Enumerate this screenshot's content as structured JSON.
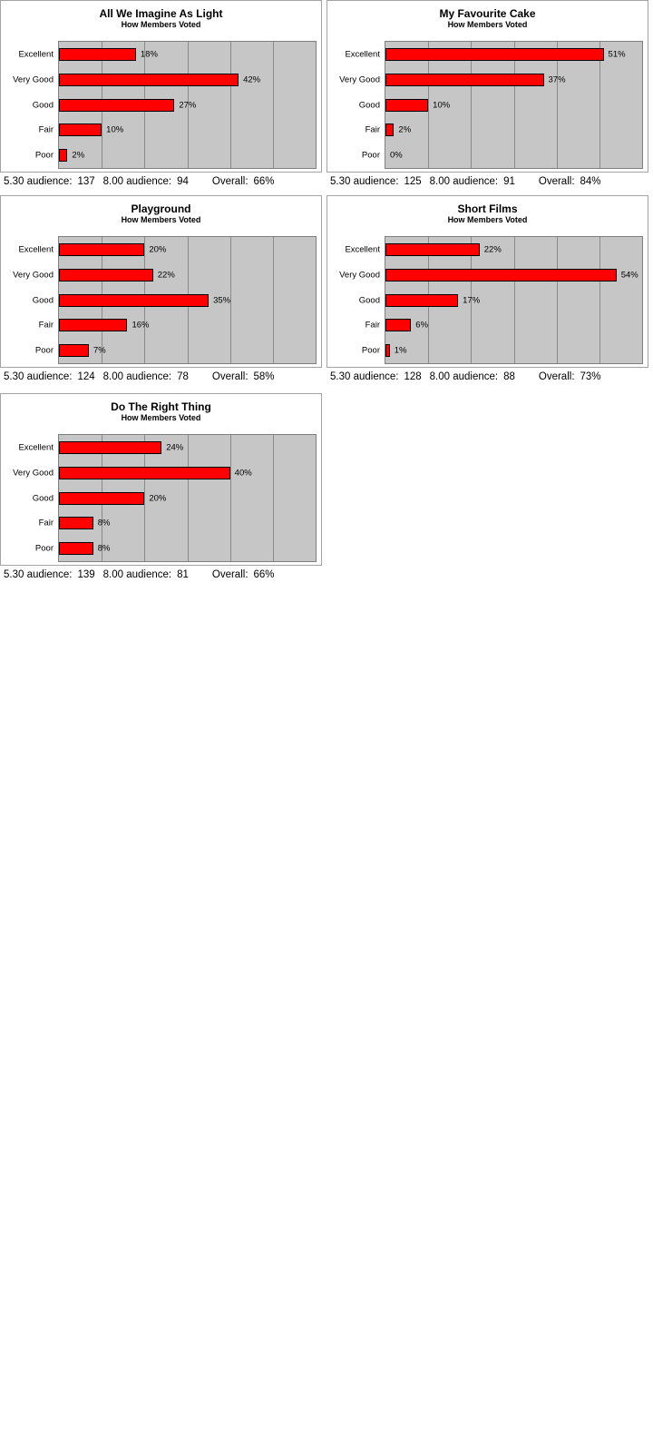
{
  "page": {
    "background": "#ffffff"
  },
  "colors": {
    "bar_fill": "#ff0000",
    "bar_border": "#000000",
    "plot_background": "#c6c6c6",
    "gridline": "#8a8a8a",
    "plot_border": "#7f7f7f",
    "panel_border": "#a3a3a3",
    "text": "#000000"
  },
  "axis": {
    "xmin": 0,
    "xmax": 60,
    "gridline_interval": 10,
    "grid": "vertical-only",
    "tick_labels_shown": false
  },
  "footer_labels": {
    "audience_530": "5.30 audience:",
    "audience_800": "8.00 audience:",
    "overall": "Overall:"
  },
  "chart_data": [
    {
      "type": "bar",
      "orientation": "horizontal",
      "title": "All We Imagine As Light",
      "subtitle": "How Members Voted",
      "categories": [
        "Excellent",
        "Very Good",
        "Good",
        "Fair",
        "Poor"
      ],
      "values": [
        18,
        42,
        27,
        10,
        2
      ],
      "value_labels": [
        "18%",
        "42%",
        "27%",
        "10%",
        "2%"
      ],
      "xlim": [
        0,
        60
      ],
      "footer": {
        "audience_530": "137",
        "audience_800": "94",
        "overall": "66%"
      }
    },
    {
      "type": "bar",
      "orientation": "horizontal",
      "title": "My Favourite Cake",
      "subtitle": "How Members Voted",
      "categories": [
        "Excellent",
        "Very Good",
        "Good",
        "Fair",
        "Poor"
      ],
      "values": [
        51,
        37,
        10,
        2,
        0
      ],
      "value_labels": [
        "51%",
        "37%",
        "10%",
        "2%",
        "0%"
      ],
      "xlim": [
        0,
        60
      ],
      "footer": {
        "audience_530": "125",
        "audience_800": "91",
        "overall": "84%"
      }
    },
    {
      "type": "bar",
      "orientation": "horizontal",
      "title": "Playground",
      "subtitle": "How Members Voted",
      "categories": [
        "Excellent",
        "Very Good",
        "Good",
        "Fair",
        "Poor"
      ],
      "values": [
        20,
        22,
        35,
        16,
        7
      ],
      "value_labels": [
        "20%",
        "22%",
        "35%",
        "16%",
        "7%"
      ],
      "xlim": [
        0,
        60
      ],
      "footer": {
        "audience_530": "124",
        "audience_800": "78",
        "overall": "58%"
      }
    },
    {
      "type": "bar",
      "orientation": "horizontal",
      "title": "Short Films",
      "subtitle": "How Members Voted",
      "categories": [
        "Excellent",
        "Very Good",
        "Good",
        "Fair",
        "Poor"
      ],
      "values": [
        22,
        54,
        17,
        6,
        1
      ],
      "value_labels": [
        "22%",
        "54%",
        "17%",
        "6%",
        "1%"
      ],
      "xlim": [
        0,
        60
      ],
      "footer": {
        "audience_530": "128",
        "audience_800": "88",
        "overall": "73%"
      }
    },
    {
      "type": "bar",
      "orientation": "horizontal",
      "title": "Do The Right Thing",
      "subtitle": "How Members Voted",
      "categories": [
        "Excellent",
        "Very Good",
        "Good",
        "Fair",
        "Poor"
      ],
      "values": [
        24,
        40,
        20,
        8,
        8
      ],
      "value_labels": [
        "24%",
        "40%",
        "20%",
        "8%",
        "8%"
      ],
      "xlim": [
        0,
        60
      ],
      "footer": {
        "audience_530": "139",
        "audience_800": "81",
        "overall": "66%"
      }
    }
  ]
}
